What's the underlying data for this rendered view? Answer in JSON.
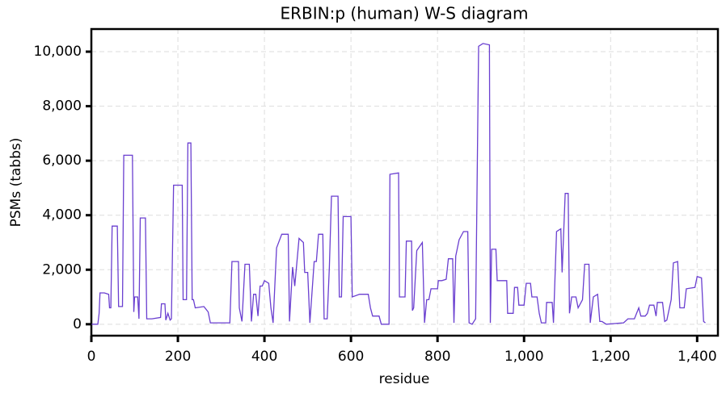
{
  "chart_data": {
    "type": "line",
    "title": "ERBIN:p (human) W-S diagram",
    "x_label": "residue",
    "y_label": "PSMs (tabbs)",
    "xlim": [
      0,
      1448
    ],
    "ylim": [
      -420,
      10830
    ],
    "xticks": [
      0,
      200,
      400,
      600,
      800,
      {
        "value": 1000,
        "label": "1,000"
      },
      {
        "value": 1200,
        "label": "1,200"
      },
      {
        "value": 1400,
        "label": "1,400"
      }
    ],
    "yticks": [
      0,
      {
        "value": 2000,
        "label": "2,000"
      },
      {
        "value": 4000,
        "label": "4,000"
      },
      {
        "value": 6000,
        "label": "6,000"
      },
      {
        "value": 8000,
        "label": "8,000"
      },
      {
        "value": 10000,
        "label": "10,000"
      }
    ],
    "grid": true,
    "series": [
      {
        "color": "#6a3fd0",
        "x": [
          1,
          15,
          18,
          20,
          30,
          40,
          42,
          45,
          48,
          60,
          63,
          72,
          75,
          95,
          98,
          100,
          107,
          110,
          113,
          125,
          128,
          140,
          160,
          162,
          170,
          172,
          177,
          182,
          185,
          190,
          210,
          212,
          220,
          223,
          230,
          233,
          236,
          240,
          260,
          270,
          275,
          300,
          320,
          325,
          340,
          342,
          348,
          355,
          365,
          370,
          375,
          380,
          385,
          390,
          395,
          400,
          410,
          415,
          420,
          428,
          440,
          455,
          458,
          465,
          470,
          480,
          490,
          493,
          500,
          505,
          515,
          520,
          525,
          535,
          538,
          545,
          550,
          555,
          570,
          573,
          578,
          582,
          600,
          603,
          620,
          640,
          645,
          650,
          665,
          670,
          688,
          690,
          710,
          712,
          725,
          728,
          740,
          742,
          745,
          752,
          765,
          770,
          775,
          780,
          785,
          800,
          802,
          810,
          820,
          825,
          835,
          838,
          842,
          850,
          860,
          870,
          873,
          880,
          888,
          895,
          905,
          920,
          922,
          925,
          935,
          938,
          960,
          962,
          975,
          978,
          985,
          988,
          1000,
          1005,
          1015,
          1018,
          1030,
          1035,
          1040,
          1050,
          1052,
          1065,
          1068,
          1075,
          1085,
          1088,
          1095,
          1102,
          1105,
          1110,
          1120,
          1125,
          1135,
          1140,
          1150,
          1153,
          1160,
          1170,
          1175,
          1180,
          1190,
          1230,
          1240,
          1255,
          1265,
          1270,
          1280,
          1285,
          1290,
          1300,
          1305,
          1308,
          1320,
          1325,
          1330,
          1340,
          1345,
          1355,
          1360,
          1370,
          1375,
          1395,
          1400,
          1410,
          1415,
          1419
        ],
        "values": [
          0,
          0,
          400,
          1150,
          1150,
          1100,
          600,
          600,
          3600,
          3600,
          650,
          650,
          6200,
          6200,
          450,
          1000,
          1000,
          200,
          3900,
          3900,
          200,
          200,
          250,
          750,
          750,
          150,
          400,
          150,
          200,
          5100,
          5100,
          900,
          900,
          6650,
          6650,
          900,
          900,
          600,
          650,
          450,
          50,
          50,
          50,
          2300,
          2300,
          600,
          100,
          2200,
          2200,
          100,
          1100,
          1100,
          300,
          1400,
          1400,
          1600,
          1500,
          600,
          50,
          2800,
          3300,
          3300,
          100,
          2100,
          1400,
          3150,
          3000,
          1900,
          1900,
          50,
          2300,
          2300,
          3300,
          3300,
          200,
          200,
          2100,
          4700,
          4700,
          1000,
          1000,
          3950,
          3950,
          1000,
          1100,
          1100,
          600,
          300,
          300,
          0,
          0,
          5500,
          5550,
          1000,
          1000,
          3050,
          3050,
          500,
          600,
          2700,
          3000,
          50,
          900,
          900,
          1300,
          1300,
          1600,
          1600,
          1650,
          2400,
          2400,
          50,
          2500,
          3100,
          3400,
          3400,
          50,
          0,
          200,
          10200,
          10300,
          10250,
          50,
          2750,
          2750,
          1600,
          1600,
          400,
          400,
          1350,
          1350,
          700,
          700,
          1500,
          1500,
          1000,
          1000,
          400,
          50,
          50,
          800,
          800,
          50,
          3400,
          3500,
          1900,
          4800,
          4800,
          400,
          1000,
          1000,
          600,
          900,
          2200,
          2200,
          50,
          1000,
          1100,
          100,
          100,
          0,
          50,
          200,
          200,
          600,
          300,
          300,
          400,
          700,
          700,
          300,
          800,
          800,
          100,
          150,
          900,
          2250,
          2300,
          600,
          600,
          1300,
          1350,
          1750,
          1700,
          100,
          50
        ]
      }
    ]
  }
}
